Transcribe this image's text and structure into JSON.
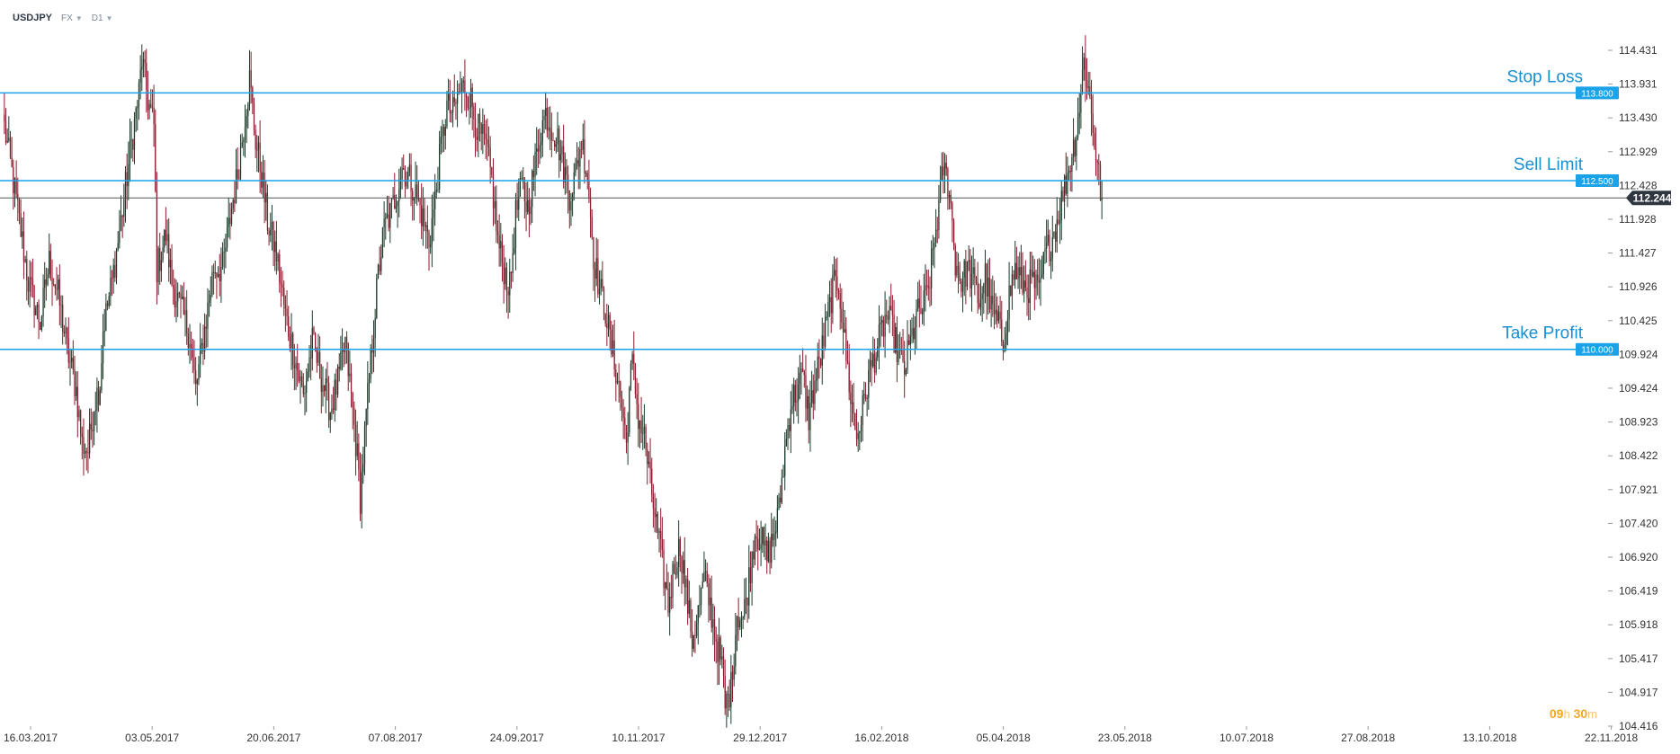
{
  "toolbar": {
    "symbol": "USDJPY",
    "market": "FX",
    "timeframe": "D1"
  },
  "timer": {
    "hours": "09",
    "hours_unit": "h",
    "minutes": "30",
    "minutes_unit": "m"
  },
  "colors": {
    "bull": "#1e3a2b",
    "bear": "#8b1a2b",
    "level_line": "#1aa3e8",
    "level_label_bg": "#1aa3e8",
    "current_line": "#555555",
    "current_label_bg": "#2f3640",
    "axis_text": "#333333",
    "annotation_text": "#1a8fd1"
  },
  "chart_data": {
    "type": "candlestick",
    "title": "",
    "xlabel": "",
    "ylabel": "",
    "ylim": [
      104.416,
      114.431
    ],
    "y_ticks": [
      "114.431",
      "113.931",
      "113.430",
      "112.929",
      "112.428",
      "111.928",
      "111.427",
      "110.926",
      "110.425",
      "109.924",
      "109.424",
      "108.923",
      "108.422",
      "107.921",
      "107.420",
      "106.920",
      "106.419",
      "105.918",
      "105.417",
      "104.917",
      "104.416"
    ],
    "x_ticks": [
      "16.03.2017",
      "03.05.2017",
      "20.06.2017",
      "07.08.2017",
      "24.09.2017",
      "10.11.2017",
      "29.12.2017",
      "16.02.2018",
      "05.04.2018",
      "23.05.2018",
      "10.07.2018",
      "27.08.2018",
      "13.10.2018",
      "22.11.2018"
    ],
    "price_path": [
      [
        0,
        113.3
      ],
      [
        8,
        112.2
      ],
      [
        16,
        111.0
      ],
      [
        24,
        110.4
      ],
      [
        30,
        111.3
      ],
      [
        36,
        110.8
      ],
      [
        42,
        110.0
      ],
      [
        48,
        109.4
      ],
      [
        52,
        108.6
      ],
      [
        56,
        108.5
      ],
      [
        60,
        109.2
      ],
      [
        64,
        109.5
      ],
      [
        66,
        110.3
      ],
      [
        72,
        111.0
      ],
      [
        78,
        111.9
      ],
      [
        84,
        112.9
      ],
      [
        90,
        113.8
      ],
      [
        92,
        114.3
      ],
      [
        96,
        113.7
      ],
      [
        100,
        113.3
      ],
      [
        102,
        111.2
      ],
      [
        108,
        111.7
      ],
      [
        112,
        111.0
      ],
      [
        118,
        110.6
      ],
      [
        124,
        110.2
      ],
      [
        128,
        109.4
      ],
      [
        134,
        110.3
      ],
      [
        140,
        111.2
      ],
      [
        146,
        111.2
      ],
      [
        152,
        112.1
      ],
      [
        156,
        112.6
      ],
      [
        160,
        113.3
      ],
      [
        164,
        114.0
      ],
      [
        168,
        113.1
      ],
      [
        172,
        112.6
      ],
      [
        176,
        111.9
      ],
      [
        182,
        111.4
      ],
      [
        188,
        110.5
      ],
      [
        194,
        109.9
      ],
      [
        200,
        109.3
      ],
      [
        206,
        110.1
      ],
      [
        212,
        109.6
      ],
      [
        218,
        109.1
      ],
      [
        224,
        109.6
      ],
      [
        228,
        110.1
      ],
      [
        232,
        109.3
      ],
      [
        236,
        108.4
      ],
      [
        238,
        107.8
      ],
      [
        242,
        109.0
      ],
      [
        246,
        110.1
      ],
      [
        250,
        111.1
      ],
      [
        254,
        111.8
      ],
      [
        258,
        112.0
      ],
      [
        262,
        112.3
      ],
      [
        266,
        112.7
      ],
      [
        272,
        112.5
      ],
      [
        278,
        112.1
      ],
      [
        284,
        111.6
      ],
      [
        288,
        112.2
      ],
      [
        292,
        113.0
      ],
      [
        296,
        113.6
      ],
      [
        300,
        113.5
      ],
      [
        304,
        113.8
      ],
      [
        308,
        113.9
      ],
      [
        312,
        113.7
      ],
      [
        316,
        113.3
      ],
      [
        322,
        113.0
      ],
      [
        326,
        112.5
      ],
      [
        330,
        111.6
      ],
      [
        334,
        111.2
      ],
      [
        338,
        110.9
      ],
      [
        342,
        112.0
      ],
      [
        346,
        112.4
      ],
      [
        350,
        112.1
      ],
      [
        354,
        112.6
      ],
      [
        358,
        113.2
      ],
      [
        362,
        113.5
      ],
      [
        366,
        113.3
      ],
      [
        370,
        113.1
      ],
      [
        374,
        112.7
      ],
      [
        378,
        112.3
      ],
      [
        382,
        112.6
      ],
      [
        386,
        113.1
      ],
      [
        390,
        112.6
      ],
      [
        394,
        111.4
      ],
      [
        398,
        110.9
      ],
      [
        402,
        110.6
      ],
      [
        406,
        110.0
      ],
      [
        410,
        109.6
      ],
      [
        414,
        109.0
      ],
      [
        416,
        108.6
      ],
      [
        418,
        109.4
      ],
      [
        420,
        109.8
      ],
      [
        424,
        109.0
      ],
      [
        428,
        108.7
      ],
      [
        432,
        108.0
      ],
      [
        436,
        107.4
      ],
      [
        440,
        106.8
      ],
      [
        444,
        106.2
      ],
      [
        448,
        106.8
      ],
      [
        452,
        107.1
      ],
      [
        456,
        106.4
      ],
      [
        460,
        105.7
      ],
      [
        464,
        106.1
      ],
      [
        468,
        106.6
      ],
      [
        472,
        106.2
      ],
      [
        476,
        105.7
      ],
      [
        480,
        105.3
      ],
      [
        482,
        104.7
      ],
      [
        486,
        105.0
      ],
      [
        490,
        106.1
      ],
      [
        494,
        106.0
      ],
      [
        498,
        106.6
      ],
      [
        502,
        107.3
      ],
      [
        506,
        107.2
      ],
      [
        510,
        106.9
      ],
      [
        514,
        107.2
      ],
      [
        518,
        107.6
      ],
      [
        522,
        108.5
      ],
      [
        526,
        109.2
      ],
      [
        530,
        109.4
      ],
      [
        534,
        109.6
      ],
      [
        538,
        109.0
      ],
      [
        542,
        109.5
      ],
      [
        546,
        109.9
      ],
      [
        550,
        110.4
      ],
      [
        554,
        110.9
      ],
      [
        558,
        111.0
      ],
      [
        562,
        110.1
      ],
      [
        566,
        109.3
      ],
      [
        570,
        108.7
      ],
      [
        574,
        109.1
      ],
      [
        578,
        109.6
      ],
      [
        582,
        109.9
      ],
      [
        586,
        110.2
      ],
      [
        590,
        110.5
      ],
      [
        594,
        110.3
      ],
      [
        598,
        109.9
      ],
      [
        602,
        109.7
      ],
      [
        606,
        110.1
      ],
      [
        610,
        110.5
      ],
      [
        614,
        110.6
      ],
      [
        618,
        110.9
      ],
      [
        622,
        111.6
      ],
      [
        626,
        112.3
      ],
      [
        628,
        112.7
      ],
      [
        632,
        112.4
      ],
      [
        636,
        111.3
      ],
      [
        640,
        111.0
      ],
      [
        644,
        111.2
      ],
      [
        648,
        111.0
      ],
      [
        652,
        110.7
      ],
      [
        656,
        111.1
      ],
      [
        660,
        110.6
      ],
      [
        664,
        110.4
      ],
      [
        668,
        110.1
      ],
      [
        672,
        110.8
      ],
      [
        676,
        111.2
      ],
      [
        680,
        111.0
      ],
      [
        684,
        110.9
      ],
      [
        688,
        111.0
      ],
      [
        692,
        110.8
      ],
      [
        696,
        111.4
      ],
      [
        700,
        111.6
      ],
      [
        704,
        111.9
      ],
      [
        708,
        112.3
      ],
      [
        712,
        112.7
      ],
      [
        716,
        113.1
      ],
      [
        720,
        113.8
      ],
      [
        722,
        114.3
      ],
      [
        726,
        113.7
      ],
      [
        728,
        113.3
      ],
      [
        730,
        112.9
      ],
      [
        734,
        112.2
      ]
    ],
    "levels": [
      {
        "name": "Stop Loss",
        "price_label": "113.800",
        "value": 113.8
      },
      {
        "name": "Sell Limit",
        "price_label": "112.500",
        "value": 112.5
      },
      {
        "name": "Take Profit",
        "price_label": "110.000",
        "value": 110.0
      }
    ],
    "current_price": {
      "label": "112.244",
      "value": 112.244
    }
  }
}
